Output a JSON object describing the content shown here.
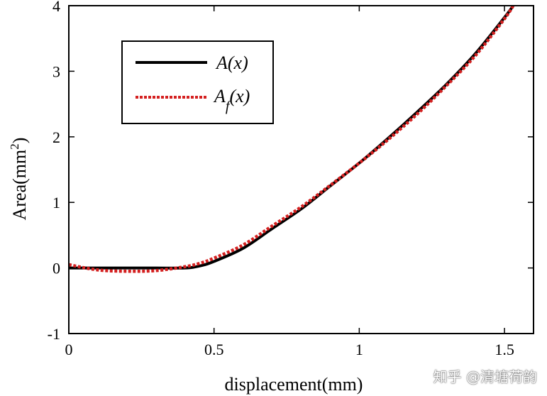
{
  "chart_data": {
    "type": "line",
    "title": "",
    "xlabel": "displacement(mm)",
    "ylabel_base": "Area(mm",
    "ylabel_sup": "2",
    "ylabel_end": ")",
    "xlim": [
      0,
      1.6
    ],
    "ylim": [
      -1,
      4
    ],
    "xticks": [
      0,
      0.5,
      1,
      1.5
    ],
    "xtick_labels": [
      "0",
      "0.5",
      "1",
      "1.5"
    ],
    "yticks": [
      -1,
      0,
      1,
      2,
      3,
      4
    ],
    "ytick_labels": [
      "-1",
      "0",
      "1",
      "2",
      "3",
      "4"
    ],
    "grid": false,
    "legend_placement": "top-left",
    "series": [
      {
        "name": "A(x)",
        "name_main": "A",
        "name_sub": "",
        "name_tail": "(x)",
        "color": "#000000",
        "style": "solid",
        "x": [
          0,
          0.1,
          0.2,
          0.3,
          0.4,
          0.45,
          0.5,
          0.6,
          0.7,
          0.8,
          0.9,
          1.0,
          1.1,
          1.2,
          1.3,
          1.4,
          1.5,
          1.53
        ],
        "y": [
          0,
          0,
          0,
          0,
          0,
          0.03,
          0.1,
          0.3,
          0.6,
          0.9,
          1.25,
          1.6,
          1.98,
          2.38,
          2.8,
          3.27,
          3.82,
          4.0
        ]
      },
      {
        "name": "Af(x)",
        "name_main": "A",
        "name_sub": "f",
        "name_tail": "(x)",
        "color": "#d42020",
        "style": "dotted",
        "x": [
          0,
          0.1,
          0.2,
          0.3,
          0.4,
          0.45,
          0.5,
          0.6,
          0.7,
          0.8,
          0.9,
          1.0,
          1.1,
          1.2,
          1.3,
          1.4,
          1.5,
          1.53
        ],
        "y": [
          0.05,
          -0.03,
          -0.05,
          -0.04,
          0.02,
          0.07,
          0.15,
          0.35,
          0.64,
          0.93,
          1.26,
          1.6,
          1.96,
          2.35,
          2.78,
          3.24,
          3.8,
          4.0
        ]
      }
    ]
  },
  "watermark": "知乎 @清塘荷韵"
}
